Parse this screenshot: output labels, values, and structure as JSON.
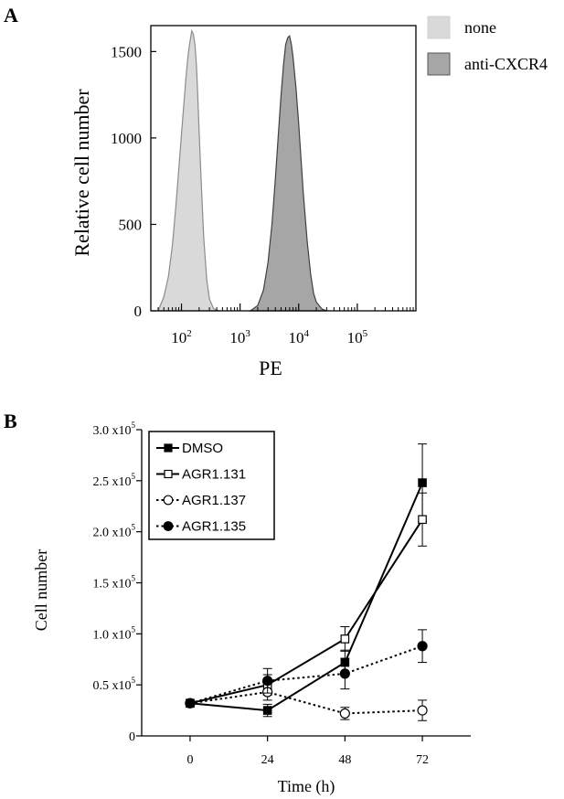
{
  "chart_data": [
    {
      "panel": "A",
      "type": "area",
      "xscale": "log",
      "xlim": [
        30,
        1000000
      ],
      "ylim": [
        0,
        1650
      ],
      "xlabel": "PE",
      "ylabel": "Relative cell number",
      "yticks": [
        0,
        500,
        1000,
        1500
      ],
      "xticks": [
        100,
        1000,
        10000,
        100000
      ],
      "xtick_labels": [
        {
          "base": "10",
          "exp": "2"
        },
        {
          "base": "10",
          "exp": "3"
        },
        {
          "base": "10",
          "exp": "4"
        },
        {
          "base": "10",
          "exp": "5"
        }
      ],
      "legend_position": "right",
      "series": [
        {
          "name": "none",
          "color": "#d9d9d9",
          "edge_color": "#8c8c8c",
          "x": [
            40,
            50,
            60,
            70,
            80,
            90,
            100,
            110,
            120,
            130,
            140,
            150,
            160,
            170,
            180,
            190,
            200,
            220,
            240,
            270,
            300,
            350,
            400,
            450
          ],
          "y": [
            0,
            80,
            200,
            380,
            600,
            820,
            1020,
            1200,
            1360,
            1480,
            1560,
            1620,
            1600,
            1540,
            1420,
            1240,
            1040,
            700,
            420,
            180,
            70,
            15,
            3,
            0
          ]
        },
        {
          "name": "anti-CXCR4",
          "color": "#a6a6a6",
          "edge_color": "#404040",
          "x": [
            1500,
            2000,
            2500,
            3000,
            3500,
            4000,
            4500,
            5000,
            5500,
            6000,
            6500,
            7000,
            7500,
            8000,
            9000,
            10000,
            11000,
            12000,
            14000,
            16000,
            18000,
            20000,
            25000,
            30000
          ],
          "y": [
            0,
            30,
            120,
            280,
            500,
            760,
            1020,
            1250,
            1420,
            1540,
            1580,
            1590,
            1540,
            1470,
            1290,
            1080,
            870,
            680,
            400,
            210,
            100,
            50,
            10,
            0
          ]
        }
      ]
    },
    {
      "panel": "B",
      "type": "line",
      "xlabel": "Time (h)",
      "ylabel": "Cell number",
      "x": [
        0,
        24,
        48,
        72
      ],
      "xlim": [
        -15,
        87
      ],
      "ylim": [
        0,
        300000
      ],
      "xticks": [
        0,
        24,
        48,
        72
      ],
      "yticks": [
        {
          "value": 0,
          "label": "0",
          "exp": ""
        },
        {
          "value": 50000,
          "label": "0.5 x10",
          "exp": "5"
        },
        {
          "value": 100000,
          "label": "1.0 x10",
          "exp": "5"
        },
        {
          "value": 150000,
          "label": "1.5 x10",
          "exp": "5"
        },
        {
          "value": 200000,
          "label": "2.0 x10",
          "exp": "5"
        },
        {
          "value": 250000,
          "label": "2.5 x10",
          "exp": "5"
        },
        {
          "value": 300000,
          "label": "3.0 x10",
          "exp": "5"
        }
      ],
      "legend_position": "top-left",
      "series": [
        {
          "name": "DMSO",
          "marker": "square",
          "filled": true,
          "dashed": false,
          "values": [
            32000,
            25000,
            72000,
            248000
          ],
          "errors": [
            0,
            6000,
            12000,
            38000
          ]
        },
        {
          "name": "AGR1.131",
          "marker": "square",
          "filled": false,
          "dashed": false,
          "values": [
            32000,
            50000,
            95000,
            212000
          ],
          "errors": [
            0,
            10000,
            12000,
            26000
          ]
        },
        {
          "name": "AGR1.137",
          "marker": "circle",
          "filled": false,
          "dashed": true,
          "values": [
            32000,
            43000,
            22000,
            25000
          ],
          "errors": [
            0,
            8000,
            6000,
            10000
          ]
        },
        {
          "name": "AGR1.135",
          "marker": "circle",
          "filled": true,
          "dashed": true,
          "values": [
            32000,
            54000,
            61000,
            88000
          ],
          "errors": [
            0,
            12000,
            15000,
            16000
          ]
        }
      ]
    }
  ]
}
